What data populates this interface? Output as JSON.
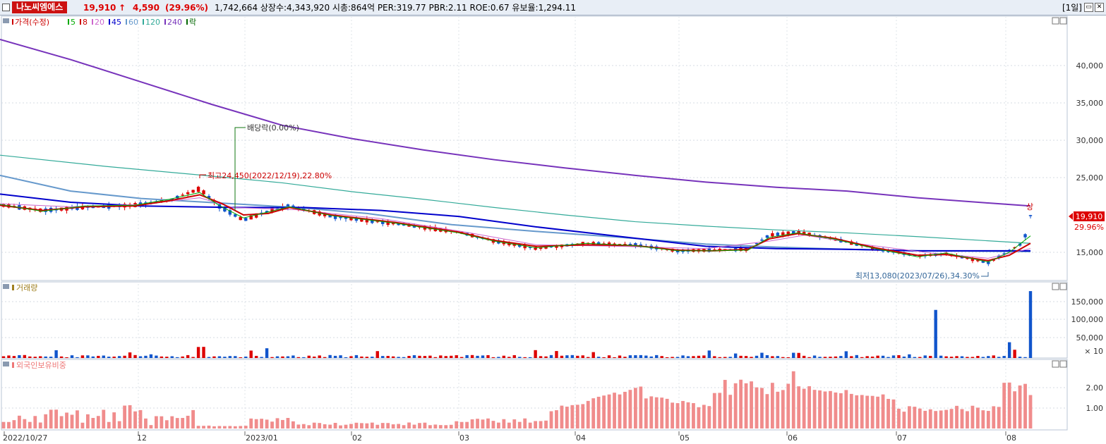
{
  "header": {
    "stock_name": "나노씨엠에스",
    "price": "19,910",
    "change_arrow": "↑",
    "change": "4,590",
    "change_pct": "(29.96%)",
    "stats": "1,742,664  상장수:4,343,920  시총:864억  PER:319.77  PBR:2.11  ROE:0.67  유보율:1,294.11",
    "period": "[1일]",
    "window_buttons": [
      "restore",
      "close"
    ]
  },
  "price_panel": {
    "legend": [
      {
        "label": "가격(수정)",
        "color": "#cc0000"
      },
      {
        "label": "5",
        "color": "#00aa00"
      },
      {
        "label": "8",
        "color": "#cc0000"
      },
      {
        "label": "20",
        "color": "#cc66cc"
      },
      {
        "label": "45",
        "color": "#0000cc"
      },
      {
        "label": "60",
        "color": "#6699cc"
      },
      {
        "label": "120",
        "color": "#33aa99"
      },
      {
        "label": "240",
        "color": "#7733bb"
      },
      {
        "label": "락",
        "color": "#006600"
      }
    ],
    "annotations": {
      "high": "최고24,450(2022/12/19),22.80%",
      "low": "최저13,080(2023/07/26),34.30%",
      "dividend": "배당락(0.00%)",
      "upper_limit": "상"
    },
    "current_price_tag": "19,910",
    "current_pct_tag": "29.96%",
    "y_axis_ticks": [
      "40,000",
      "35,000",
      "30,000",
      "25,000",
      "15,000"
    ]
  },
  "volume_panel": {
    "title": "거래량",
    "y_axis_ticks": [
      "150,000",
      "100,000",
      "50,000"
    ],
    "unit": "× 10"
  },
  "foreign_panel": {
    "title": "외국인보유비중",
    "y_axis_ticks": [
      "2.00",
      "1.00"
    ]
  },
  "x_axis_labels": [
    "2022/10/27",
    "12",
    "2023/01",
    "02",
    "03",
    "04",
    "05",
    "06",
    "07",
    "08"
  ],
  "chart_data": {
    "type": "candlestick",
    "x": [
      "2022/10/27",
      "2023/08"
    ],
    "price_range_visible": [
      12500,
      45000
    ],
    "highest": {
      "value": 24450,
      "date": "2022/12/19"
    },
    "lowest": {
      "value": 13080,
      "date": "2023/07/26"
    },
    "last_close": 19910,
    "ma240_approx": [
      43500,
      38000,
      33000,
      29500,
      27000,
      25000,
      23500,
      22000,
      21000,
      20000,
      19000,
      18500
    ],
    "volume_peaks": [
      {
        "date": "2023/07",
        "value": 130000
      },
      {
        "date": "2023/08",
        "value": 180000
      }
    ],
    "foreign_ratio_range": [
      0.0,
      2.8
    ]
  }
}
